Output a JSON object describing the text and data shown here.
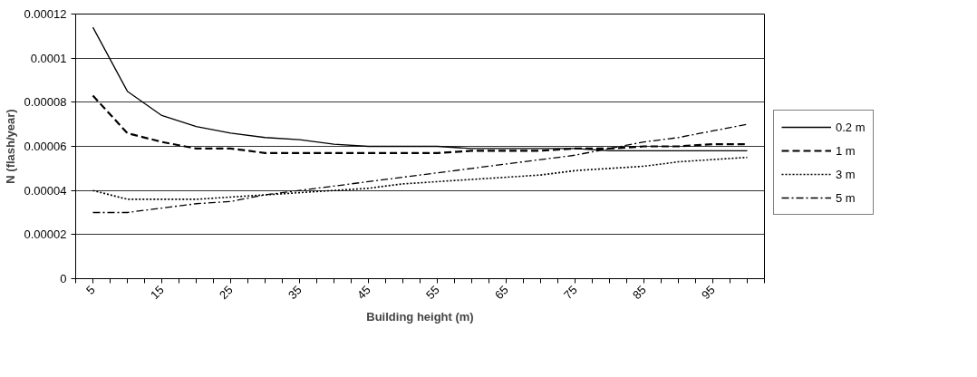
{
  "chart_data": {
    "type": "line",
    "xlabel": "Building height (m)",
    "ylabel": "N (flash/year)",
    "categories": [
      "5",
      null,
      "15",
      null,
      "25",
      null,
      "35",
      null,
      "45",
      null,
      "55",
      null,
      "65",
      null,
      "75",
      null,
      "85",
      null,
      "95",
      null
    ],
    "ylim": [
      0,
      0.00012
    ],
    "yticks": [
      0,
      {
        "value": 2e-05,
        "label": "0.00002"
      },
      {
        "value": 4e-05,
        "label": "0.00004"
      },
      {
        "value": 6e-05,
        "label": "0.00006"
      },
      {
        "value": 8e-05,
        "label": "0.00008"
      },
      0.0001,
      0.00012
    ],
    "grid": "y",
    "legend": "right",
    "series": [
      {
        "name": "0.2 m",
        "color": "#000000",
        "line_style": "solid",
        "values": [
          0.000114,
          8.5e-05,
          7.4e-05,
          6.9e-05,
          6.6e-05,
          6.4e-05,
          6.3e-05,
          6.1e-05,
          6e-05,
          6e-05,
          6e-05,
          5.9e-05,
          5.9e-05,
          5.9e-05,
          5.9e-05,
          5.8e-05,
          5.8e-05,
          5.8e-05,
          5.8e-05,
          5.8e-05
        ]
      },
      {
        "name": "1 m",
        "color": "#000000",
        "line_style": "dashed",
        "values": [
          8.3e-05,
          6.6e-05,
          6.2e-05,
          5.9e-05,
          5.9e-05,
          5.7e-05,
          5.7e-05,
          5.7e-05,
          5.7e-05,
          5.7e-05,
          5.7e-05,
          5.8e-05,
          5.8e-05,
          5.8e-05,
          5.9e-05,
          5.9e-05,
          6e-05,
          6e-05,
          6.1e-05,
          6.1e-05
        ]
      },
      {
        "name": "3 m",
        "color": "#000000",
        "line_style": "dotted",
        "values": [
          4e-05,
          3.6e-05,
          3.6e-05,
          3.6e-05,
          3.7e-05,
          3.8e-05,
          3.9e-05,
          4e-05,
          4.1e-05,
          4.3e-05,
          4.4e-05,
          4.5e-05,
          4.6e-05,
          4.7e-05,
          4.9e-05,
          5e-05,
          5.1e-05,
          5.3e-05,
          5.4e-05,
          5.5e-05
        ]
      },
      {
        "name": "5 m",
        "color": "#000000",
        "line_style": "dashdot",
        "values": [
          3e-05,
          3e-05,
          3.2e-05,
          3.4e-05,
          3.5e-05,
          3.8e-05,
          4e-05,
          4.2e-05,
          4.4e-05,
          4.6e-05,
          4.8e-05,
          5e-05,
          5.2e-05,
          5.4e-05,
          5.6e-05,
          5.9e-05,
          6.2e-05,
          6.4e-05,
          6.7e-05,
          7e-05
        ]
      }
    ]
  }
}
